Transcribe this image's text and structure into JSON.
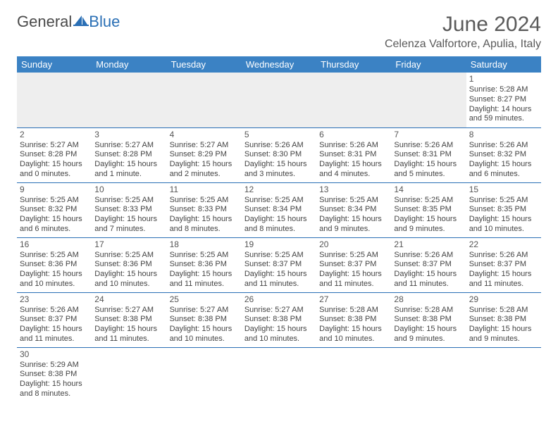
{
  "brand": {
    "general": "General",
    "blue": "Blue"
  },
  "title": "June 2024",
  "location": "Celenza Valfortore, Apulia, Italy",
  "colors": {
    "header_bg": "#3b82c4",
    "header_fg": "#ffffff",
    "row_border": "#2a6fb5",
    "empty_bg": "#eeeeee",
    "text": "#444444",
    "brand_blue": "#2a6fb5"
  },
  "weekdays": [
    "Sunday",
    "Monday",
    "Tuesday",
    "Wednesday",
    "Thursday",
    "Friday",
    "Saturday"
  ],
  "labels": {
    "sunrise": "Sunrise:",
    "sunset": "Sunset:",
    "daylight": "Daylight:"
  },
  "weeks": [
    [
      null,
      null,
      null,
      null,
      null,
      null,
      {
        "d": "1",
        "rise": "5:28 AM",
        "set": "8:27 PM",
        "dl1": "14 hours",
        "dl2": "and 59 minutes."
      }
    ],
    [
      {
        "d": "2",
        "rise": "5:27 AM",
        "set": "8:28 PM",
        "dl1": "15 hours",
        "dl2": "and 0 minutes."
      },
      {
        "d": "3",
        "rise": "5:27 AM",
        "set": "8:28 PM",
        "dl1": "15 hours",
        "dl2": "and 1 minute."
      },
      {
        "d": "4",
        "rise": "5:27 AM",
        "set": "8:29 PM",
        "dl1": "15 hours",
        "dl2": "and 2 minutes."
      },
      {
        "d": "5",
        "rise": "5:26 AM",
        "set": "8:30 PM",
        "dl1": "15 hours",
        "dl2": "and 3 minutes."
      },
      {
        "d": "6",
        "rise": "5:26 AM",
        "set": "8:31 PM",
        "dl1": "15 hours",
        "dl2": "and 4 minutes."
      },
      {
        "d": "7",
        "rise": "5:26 AM",
        "set": "8:31 PM",
        "dl1": "15 hours",
        "dl2": "and 5 minutes."
      },
      {
        "d": "8",
        "rise": "5:26 AM",
        "set": "8:32 PM",
        "dl1": "15 hours",
        "dl2": "and 6 minutes."
      }
    ],
    [
      {
        "d": "9",
        "rise": "5:25 AM",
        "set": "8:32 PM",
        "dl1": "15 hours",
        "dl2": "and 6 minutes."
      },
      {
        "d": "10",
        "rise": "5:25 AM",
        "set": "8:33 PM",
        "dl1": "15 hours",
        "dl2": "and 7 minutes."
      },
      {
        "d": "11",
        "rise": "5:25 AM",
        "set": "8:33 PM",
        "dl1": "15 hours",
        "dl2": "and 8 minutes."
      },
      {
        "d": "12",
        "rise": "5:25 AM",
        "set": "8:34 PM",
        "dl1": "15 hours",
        "dl2": "and 8 minutes."
      },
      {
        "d": "13",
        "rise": "5:25 AM",
        "set": "8:34 PM",
        "dl1": "15 hours",
        "dl2": "and 9 minutes."
      },
      {
        "d": "14",
        "rise": "5:25 AM",
        "set": "8:35 PM",
        "dl1": "15 hours",
        "dl2": "and 9 minutes."
      },
      {
        "d": "15",
        "rise": "5:25 AM",
        "set": "8:35 PM",
        "dl1": "15 hours",
        "dl2": "and 10 minutes."
      }
    ],
    [
      {
        "d": "16",
        "rise": "5:25 AM",
        "set": "8:36 PM",
        "dl1": "15 hours",
        "dl2": "and 10 minutes."
      },
      {
        "d": "17",
        "rise": "5:25 AM",
        "set": "8:36 PM",
        "dl1": "15 hours",
        "dl2": "and 10 minutes."
      },
      {
        "d": "18",
        "rise": "5:25 AM",
        "set": "8:36 PM",
        "dl1": "15 hours",
        "dl2": "and 11 minutes."
      },
      {
        "d": "19",
        "rise": "5:25 AM",
        "set": "8:37 PM",
        "dl1": "15 hours",
        "dl2": "and 11 minutes."
      },
      {
        "d": "20",
        "rise": "5:25 AM",
        "set": "8:37 PM",
        "dl1": "15 hours",
        "dl2": "and 11 minutes."
      },
      {
        "d": "21",
        "rise": "5:26 AM",
        "set": "8:37 PM",
        "dl1": "15 hours",
        "dl2": "and 11 minutes."
      },
      {
        "d": "22",
        "rise": "5:26 AM",
        "set": "8:37 PM",
        "dl1": "15 hours",
        "dl2": "and 11 minutes."
      }
    ],
    [
      {
        "d": "23",
        "rise": "5:26 AM",
        "set": "8:37 PM",
        "dl1": "15 hours",
        "dl2": "and 11 minutes."
      },
      {
        "d": "24",
        "rise": "5:27 AM",
        "set": "8:38 PM",
        "dl1": "15 hours",
        "dl2": "and 11 minutes."
      },
      {
        "d": "25",
        "rise": "5:27 AM",
        "set": "8:38 PM",
        "dl1": "15 hours",
        "dl2": "and 10 minutes."
      },
      {
        "d": "26",
        "rise": "5:27 AM",
        "set": "8:38 PM",
        "dl1": "15 hours",
        "dl2": "and 10 minutes."
      },
      {
        "d": "27",
        "rise": "5:28 AM",
        "set": "8:38 PM",
        "dl1": "15 hours",
        "dl2": "and 10 minutes."
      },
      {
        "d": "28",
        "rise": "5:28 AM",
        "set": "8:38 PM",
        "dl1": "15 hours",
        "dl2": "and 9 minutes."
      },
      {
        "d": "29",
        "rise": "5:28 AM",
        "set": "8:38 PM",
        "dl1": "15 hours",
        "dl2": "and 9 minutes."
      }
    ],
    [
      {
        "d": "30",
        "rise": "5:29 AM",
        "set": "8:38 PM",
        "dl1": "15 hours",
        "dl2": "and 8 minutes."
      },
      null,
      null,
      null,
      null,
      null,
      null
    ]
  ]
}
